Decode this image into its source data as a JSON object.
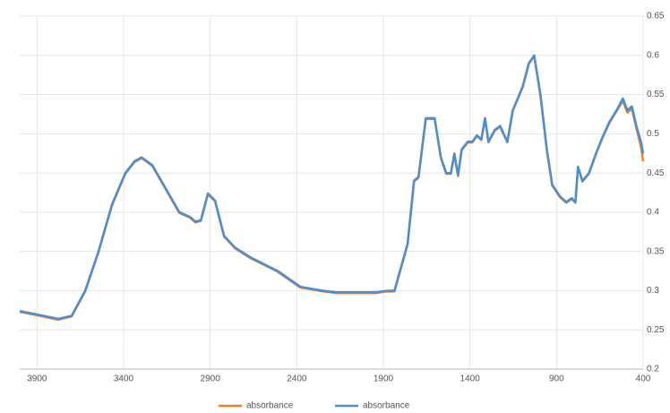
{
  "chart_data": {
    "type": "line",
    "x": [
      4000,
      3907,
      3777,
      3700,
      3622,
      3545,
      3467,
      3390,
      3337,
      3296,
      3234,
      3156,
      3078,
      3016,
      2985,
      2954,
      2913,
      2872,
      2820,
      2757,
      2664,
      2509,
      2380,
      2250,
      2173,
      2043,
      1940,
      1878,
      1836,
      1760,
      1723,
      1697,
      1655,
      1604,
      1568,
      1537,
      1510,
      1490,
      1469,
      1448,
      1412,
      1386,
      1360,
      1334,
      1313,
      1293,
      1257,
      1226,
      1184,
      1153,
      1096,
      1060,
      1029,
      993,
      956,
      925,
      879,
      843,
      812,
      791,
      776,
      750,
      713,
      672,
      636,
      595,
      553,
      517,
      491,
      465,
      439,
      413,
      400
    ],
    "series": [
      {
        "name": "absorbance",
        "color": "#f07f2e",
        "values": [
          0.273,
          0.269,
          0.263,
          0.267,
          0.299,
          0.349,
          0.409,
          0.449,
          0.464,
          0.469,
          0.459,
          0.429,
          0.399,
          0.393,
          0.387,
          0.389,
          0.423,
          0.414,
          0.369,
          0.354,
          0.341,
          0.324,
          0.304,
          0.299,
          0.297,
          0.297,
          0.297,
          0.299,
          0.299,
          0.359,
          0.439,
          0.444,
          0.519,
          0.519,
          0.469,
          0.449,
          0.449,
          0.474,
          0.446,
          0.479,
          0.489,
          0.489,
          0.497,
          0.492,
          0.519,
          0.489,
          0.504,
          0.509,
          0.489,
          0.529,
          0.559,
          0.589,
          0.599,
          0.549,
          0.479,
          0.434,
          0.419,
          0.412,
          0.417,
          0.412,
          0.457,
          0.439,
          0.449,
          0.474,
          0.494,
          0.514,
          0.529,
          0.542,
          0.527,
          0.532,
          0.507,
          0.484,
          0.465
        ]
      },
      {
        "name": "absorbance",
        "color": "#4a8fd0",
        "values": [
          0.274,
          0.27,
          0.264,
          0.268,
          0.3,
          0.35,
          0.41,
          0.45,
          0.465,
          0.47,
          0.46,
          0.43,
          0.4,
          0.394,
          0.388,
          0.39,
          0.424,
          0.415,
          0.37,
          0.355,
          0.342,
          0.325,
          0.305,
          0.3,
          0.298,
          0.298,
          0.298,
          0.3,
          0.3,
          0.36,
          0.44,
          0.445,
          0.52,
          0.52,
          0.47,
          0.45,
          0.45,
          0.475,
          0.447,
          0.48,
          0.49,
          0.49,
          0.498,
          0.493,
          0.52,
          0.49,
          0.505,
          0.51,
          0.49,
          0.53,
          0.56,
          0.59,
          0.6,
          0.55,
          0.48,
          0.435,
          0.42,
          0.413,
          0.418,
          0.413,
          0.458,
          0.44,
          0.45,
          0.475,
          0.495,
          0.515,
          0.53,
          0.545,
          0.53,
          0.535,
          0.51,
          0.49,
          0.475
        ]
      }
    ],
    "xlim": [
      4000,
      400
    ],
    "xticks": [
      3900,
      3400,
      2900,
      2400,
      1900,
      1400,
      900,
      400
    ],
    "ylim": [
      0.2,
      0.65
    ],
    "yticks": [
      0.2,
      0.25,
      0.3,
      0.35,
      0.4,
      0.45,
      0.5,
      0.55,
      0.6,
      0.65
    ],
    "grid": true
  }
}
